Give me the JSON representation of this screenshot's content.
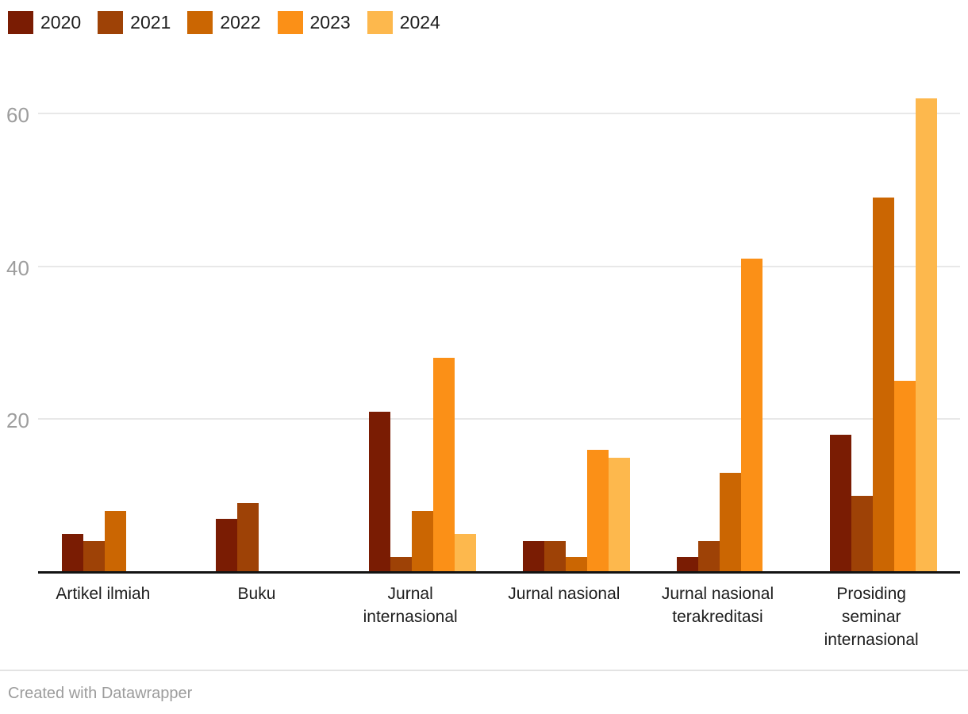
{
  "chart_data": {
    "type": "bar",
    "variant": "grouped-column",
    "title": "",
    "categories": [
      "Artikel ilmiah",
      "Buku",
      "Jurnal internasional",
      "Jurnal nasional",
      "Jurnal nasional terakreditasi",
      "Prosiding seminar internasional"
    ],
    "category_label_lines": [
      [
        "Artikel ilmiah"
      ],
      [
        "Buku"
      ],
      [
        "Jurnal",
        "internasional"
      ],
      [
        "Jurnal nasional"
      ],
      [
        "Jurnal nasional",
        "terakreditasi"
      ],
      [
        "Prosiding",
        "seminar",
        "internasional"
      ]
    ],
    "series": [
      {
        "name": "2020",
        "color": "#7A1C03",
        "values": [
          5,
          7,
          21,
          4,
          2,
          18
        ]
      },
      {
        "name": "2021",
        "color": "#9E4206",
        "values": [
          4,
          9,
          2,
          4,
          4,
          10
        ]
      },
      {
        "name": "2022",
        "color": "#CB6602",
        "values": [
          8,
          0,
          8,
          2,
          13,
          49
        ]
      },
      {
        "name": "2023",
        "color": "#FB9017",
        "values": [
          0,
          0,
          28,
          16,
          41,
          25
        ]
      },
      {
        "name": "2024",
        "color": "#FDB84D",
        "values": [
          0,
          0,
          5,
          15,
          0,
          62
        ]
      }
    ],
    "yticks": [
      20,
      40,
      60
    ],
    "ylim": [
      0,
      64
    ],
    "grid": true,
    "legend_position": "top-left",
    "xlabel": "",
    "ylabel": ""
  },
  "footer": {
    "credit": "Created with Datawrapper"
  },
  "colors": {
    "background": "#ffffff",
    "axis": "#131313",
    "grid": "#e8e8e8",
    "tick_label": "#9d9d9d",
    "category_label": "#1d1d1d",
    "footer_text": "#9c9c9c"
  }
}
